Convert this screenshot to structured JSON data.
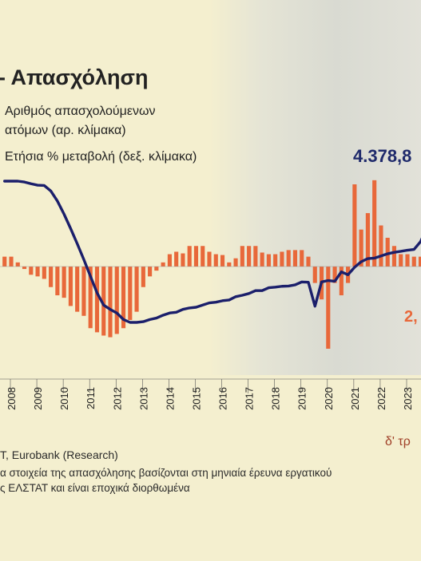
{
  "title": "- Απασχόληση",
  "legend": {
    "line_label_1": "Αριθμός απασχολούμενων",
    "line_label_2": "ατόμων (αρ. κλίμακα)",
    "bar_label": "Ετήσια % μεταβολή (δεξ. κλίμακα)"
  },
  "annotations": {
    "last_employment": "4.378,8",
    "last_change": "2,"
  },
  "footer": {
    "period": "δ' τρ",
    "source": "T, Eurobank (Research)",
    "note_line_1": "α στοιχεία της απασχόλησης βασίζονται στη μηνιαία έρευνα εργατικού",
    "note_line_2": "ς ΕΛΣΤΑΤ και είναι εποχικά διορθωμένα"
  },
  "colors": {
    "line": "#1b1f6b",
    "bars": "#e8683a",
    "background": "#f4efcf"
  },
  "chart_data": {
    "type": "bar+line",
    "x_tick_labels": [
      "2008",
      "2009",
      "2010",
      "2011",
      "2012",
      "2013",
      "2014",
      "2015",
      "2016",
      "2017",
      "2018",
      "2019",
      "2020",
      "2021",
      "2022",
      "2023"
    ],
    "x_range": [
      2007.75,
      2024.0
    ],
    "series": [
      {
        "name": "Αριθμός απασχολούμενων ατόμων (αρ. κλίμακα)",
        "type": "line",
        "axis": "left",
        "ylim": [
          3300,
          4700
        ],
        "x": [
          2007.75,
          2008.0,
          2008.25,
          2008.5,
          2008.75,
          2009.0,
          2009.25,
          2009.5,
          2009.75,
          2010.0,
          2010.25,
          2010.5,
          2010.75,
          2011.0,
          2011.25,
          2011.5,
          2011.75,
          2012.0,
          2012.25,
          2012.5,
          2012.75,
          2013.0,
          2013.25,
          2013.5,
          2013.75,
          2014.0,
          2014.25,
          2014.5,
          2014.75,
          2015.0,
          2015.25,
          2015.5,
          2015.75,
          2016.0,
          2016.25,
          2016.5,
          2016.75,
          2017.0,
          2017.25,
          2017.5,
          2017.75,
          2018.0,
          2018.25,
          2018.5,
          2018.75,
          2019.0,
          2019.25,
          2019.5,
          2019.75,
          2020.0,
          2020.25,
          2020.5,
          2020.75,
          2021.0,
          2021.25,
          2021.5,
          2021.75,
          2022.0,
          2022.25,
          2022.5,
          2022.75,
          2023.0,
          2023.25,
          2023.5,
          2023.75,
          2024.0
        ],
        "values": [
          4618,
          4618,
          4618,
          4612,
          4600,
          4590,
          4588,
          4550,
          4480,
          4390,
          4290,
          4185,
          4075,
          3960,
          3845,
          3760,
          3730,
          3705,
          3660,
          3640,
          3640,
          3645,
          3660,
          3670,
          3690,
          3705,
          3710,
          3730,
          3740,
          3745,
          3760,
          3775,
          3780,
          3790,
          3795,
          3818,
          3828,
          3840,
          3860,
          3860,
          3880,
          3884,
          3890,
          3892,
          3900,
          3920,
          3918,
          3752,
          3920,
          3930,
          3925,
          3990,
          3970,
          4022,
          4060,
          4082,
          4085,
          4100,
          4115,
          4125,
          4132,
          4140,
          4145,
          4200,
          4300,
          4378.8
        ]
      },
      {
        "name": "Ετήσια % μεταβολή (δεξ. κλίμακα)",
        "type": "bar",
        "axis": "right",
        "ylim": [
          -13,
          13
        ],
        "x": [
          2007.75,
          2008.0,
          2008.25,
          2008.5,
          2008.75,
          2009.0,
          2009.25,
          2009.5,
          2009.75,
          2010.0,
          2010.25,
          2010.5,
          2010.75,
          2011.0,
          2011.25,
          2011.5,
          2011.75,
          2012.0,
          2012.25,
          2012.5,
          2012.75,
          2013.0,
          2013.25,
          2013.5,
          2013.75,
          2014.0,
          2014.25,
          2014.5,
          2014.75,
          2015.0,
          2015.25,
          2015.5,
          2015.75,
          2016.0,
          2016.25,
          2016.5,
          2016.75,
          2017.0,
          2017.25,
          2017.5,
          2017.75,
          2018.0,
          2018.25,
          2018.5,
          2018.75,
          2019.0,
          2019.25,
          2019.5,
          2019.75,
          2020.0,
          2020.25,
          2020.5,
          2020.75,
          2021.0,
          2021.25,
          2021.5,
          2021.75,
          2022.0,
          2022.25,
          2022.5,
          2022.75,
          2023.0,
          2023.25,
          2023.5,
          2023.75
        ],
        "values": [
          1.2,
          1.2,
          0.5,
          -0.3,
          -1.0,
          -1.2,
          -1.5,
          -2.5,
          -3.5,
          -3.8,
          -4.8,
          -5.5,
          -6.0,
          -7.5,
          -8.0,
          -8.4,
          -8.6,
          -8.2,
          -7.5,
          -6.5,
          -5.5,
          -2.5,
          -1.2,
          -0.5,
          0.5,
          1.5,
          1.8,
          1.6,
          2.5,
          2.5,
          2.5,
          1.8,
          1.5,
          1.4,
          0.5,
          1.0,
          2.5,
          2.5,
          2.5,
          1.7,
          1.5,
          1.5,
          1.8,
          2.0,
          2.0,
          2.0,
          1.2,
          -2.0,
          -4.0,
          -10.0,
          -2.0,
          -3.5,
          -2.0,
          10.0,
          4.5,
          6.5,
          10.5,
          5.0,
          3.5,
          2.5,
          1.5,
          1.5,
          1.2,
          1.2,
          2.0
        ]
      }
    ],
    "grid": false,
    "legend_position": "top-left"
  }
}
